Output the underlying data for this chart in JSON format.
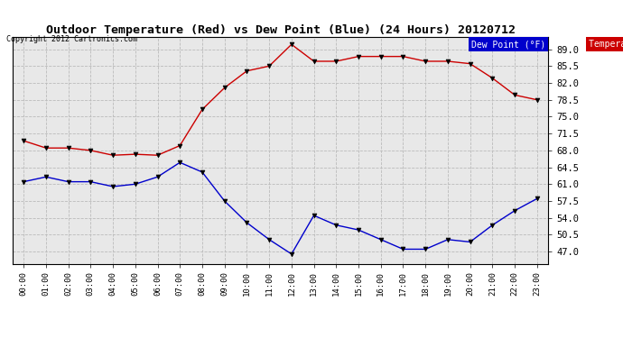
{
  "title": "Outdoor Temperature (Red) vs Dew Point (Blue) (24 Hours) 20120712",
  "copyright": "Copyright 2012 Cartronics.com",
  "background_color": "#ffffff",
  "plot_bg_color": "#e8e8e8",
  "x_labels": [
    "00:00",
    "01:00",
    "02:00",
    "03:00",
    "04:00",
    "05:00",
    "06:00",
    "07:00",
    "08:00",
    "09:00",
    "10:00",
    "11:00",
    "12:00",
    "13:00",
    "14:00",
    "15:00",
    "16:00",
    "17:00",
    "18:00",
    "19:00",
    "20:00",
    "21:00",
    "22:00",
    "23:00"
  ],
  "temperature": [
    70.0,
    68.5,
    68.5,
    68.0,
    67.0,
    67.2,
    67.0,
    69.0,
    76.5,
    81.0,
    84.5,
    85.5,
    90.0,
    86.5,
    86.5,
    87.5,
    87.5,
    87.5,
    86.5,
    86.5,
    86.0,
    83.0,
    79.5,
    78.5
  ],
  "dew_point": [
    61.5,
    62.5,
    61.5,
    61.5,
    60.5,
    61.0,
    62.5,
    65.5,
    63.5,
    57.5,
    53.0,
    49.5,
    46.5,
    54.5,
    52.5,
    51.5,
    49.5,
    47.5,
    47.5,
    49.5,
    49.0,
    52.5,
    55.5,
    58.0
  ],
  "temp_color": "#cc0000",
  "dew_color": "#0000cc",
  "marker_color": "#000000",
  "grid_color": "#bbbbbb",
  "ylim_min": 44.5,
  "ylim_max": 91.5,
  "yticks": [
    47.0,
    50.5,
    54.0,
    57.5,
    61.0,
    64.5,
    68.0,
    71.5,
    75.0,
    78.5,
    82.0,
    85.5,
    89.0
  ],
  "legend_dew_bg": "#0000cc",
  "legend_temp_bg": "#cc0000",
  "legend_text_color": "#ffffff"
}
